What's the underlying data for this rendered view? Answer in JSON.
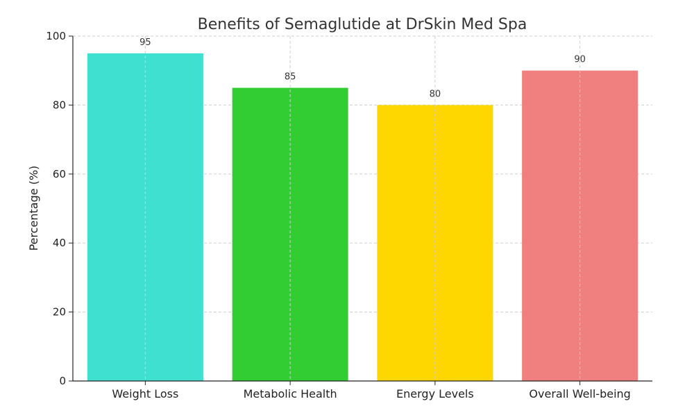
{
  "chart_data": {
    "type": "bar",
    "title": "Benefits of Semaglutide at DrSkin Med Spa",
    "xlabel": "",
    "ylabel": "Percentage (%)",
    "categories": [
      "Weight Loss",
      "Metabolic Health",
      "Energy Levels",
      "Overall Well-being"
    ],
    "values": [
      95,
      85,
      80,
      90
    ],
    "colors": [
      "#40E0D0",
      "#32CD32",
      "#FFD700",
      "#F08080"
    ],
    "ylim": [
      0,
      100
    ],
    "yticks": [
      0,
      20,
      40,
      60,
      80,
      100
    ],
    "grid": true,
    "grid_style": "dashed",
    "data_labels": true
  }
}
